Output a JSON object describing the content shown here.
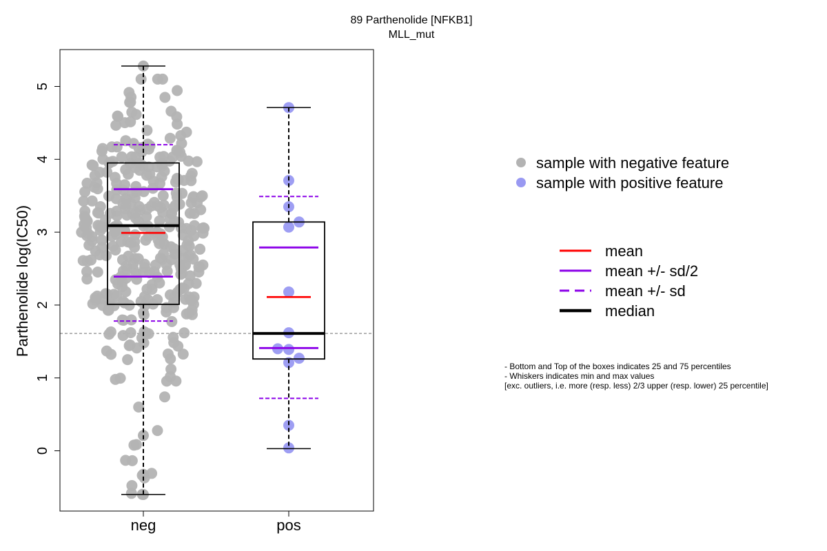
{
  "chart_data": {
    "type": "box",
    "title": "89 Parthenolide [NFKB1]",
    "subtitle": "MLL_mut",
    "ylabel": "Parthenolide log(IC50)",
    "ylim": [
      -0.8,
      5.5
    ],
    "yticks": [
      "0",
      "1",
      "2",
      "3",
      "4",
      "5"
    ],
    "reference_line": 1.61,
    "categories": [
      "neg",
      "pos"
    ],
    "groups": [
      {
        "name": "neg",
        "whisker_low": -0.6,
        "q1": 2.01,
        "median": 3.09,
        "q3": 3.95,
        "whisker_high": 5.28,
        "mean": 2.99,
        "mean_minus_half_sd": 2.39,
        "mean_plus_half_sd": 3.59,
        "mean_minus_sd": 1.78,
        "mean_plus_sd": 4.2,
        "n_points": 380
      },
      {
        "name": "pos",
        "whisker_low": 0.03,
        "q1": 1.26,
        "median": 1.61,
        "q3": 3.14,
        "whisker_high": 4.71,
        "mean": 2.11,
        "mean_minus_half_sd": 1.41,
        "mean_plus_half_sd": 2.79,
        "mean_minus_sd": 0.72,
        "mean_plus_sd": 3.49,
        "points": [
          4.71,
          3.71,
          3.35,
          3.14,
          3.07,
          2.18,
          1.62,
          1.4,
          1.39,
          1.27,
          1.21,
          0.35,
          0.04
        ]
      }
    ],
    "legend_points": [
      {
        "label": "sample with negative feature",
        "color": "#b3b3b3"
      },
      {
        "label": "sample with positive feature",
        "color": "#9999f2"
      }
    ],
    "legend_lines": [
      {
        "label": "mean",
        "color": "#ff0000",
        "style": "solid"
      },
      {
        "label": "mean +/- sd/2",
        "color": "#8b00e8",
        "style": "solid"
      },
      {
        "label": "mean +/- sd",
        "color": "#8b00e8",
        "style": "dashed"
      },
      {
        "label": "median",
        "color": "#000000",
        "style": "thick"
      }
    ],
    "notes": [
      "- Bottom and Top of the boxes indicates 25 and 75 percentiles",
      "- Whiskers indicates min and max values",
      "[exc. outliers, i.e. more (resp. less) 2/3 upper (resp. lower) 25 percentile]"
    ],
    "grid": false
  }
}
